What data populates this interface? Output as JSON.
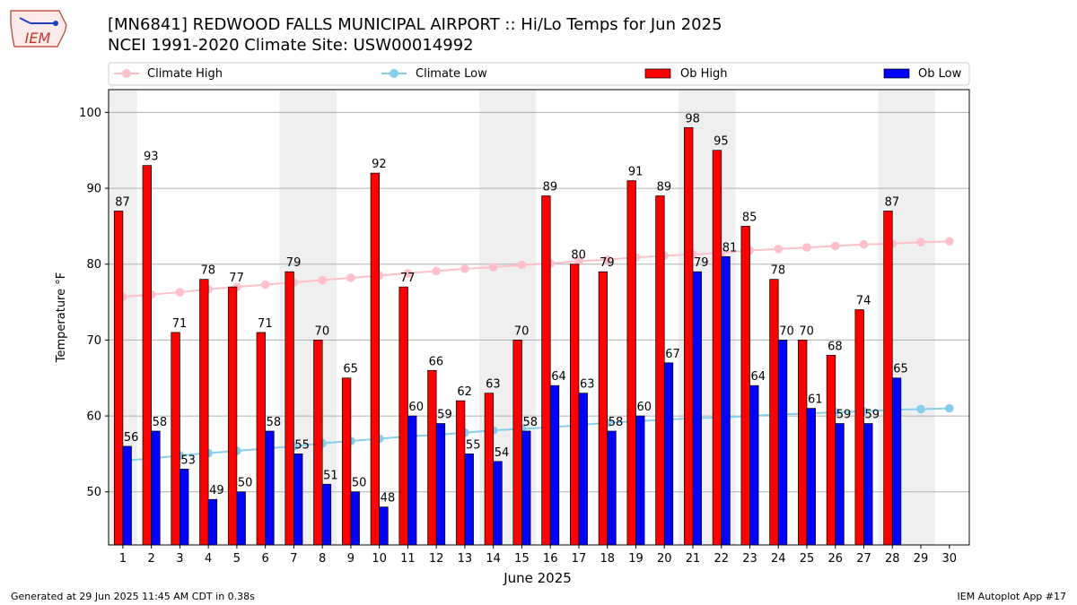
{
  "header": {
    "title_line1": "[MN6841] REDWOOD FALLS MUNICIPAL AIRPORT :: Hi/Lo Temps for Jun 2025",
    "title_line2": "NCEI 1991-2020 Climate Site: USW00014992",
    "logo_text": "IEM"
  },
  "footer": {
    "generated": "Generated at 29 Jun 2025 11:45 AM CDT in 0.38s",
    "app": "IEM Autoplot App #17"
  },
  "colors": {
    "ob_high": "#ff0000",
    "ob_low": "#0000ff",
    "climate_high": "#ffc0cb",
    "climate_low": "#87ceeb",
    "weekend_shade": "#efefef",
    "grid": "#b0b0b0"
  },
  "chart_data": {
    "type": "bar",
    "title": "[MN6841] REDWOOD FALLS MUNICIPAL AIRPORT :: Hi/Lo Temps for Jun 2025",
    "subtitle": "NCEI 1991-2020 Climate Site: USW00014992",
    "xlabel": "June 2025",
    "ylabel": "Temperature °F",
    "ylim": [
      43,
      103
    ],
    "yticks": [
      50,
      60,
      70,
      80,
      90,
      100
    ],
    "grid": "y",
    "legend_position": "top",
    "categories": [
      "1",
      "2",
      "3",
      "4",
      "5",
      "6",
      "7",
      "8",
      "9",
      "10",
      "11",
      "12",
      "13",
      "14",
      "15",
      "16",
      "17",
      "18",
      "19",
      "20",
      "21",
      "22",
      "23",
      "24",
      "25",
      "26",
      "27",
      "28",
      "29",
      "30"
    ],
    "shaded_days": [
      1,
      7,
      8,
      14,
      15,
      21,
      22,
      28,
      29
    ],
    "series": [
      {
        "name": "Ob High",
        "kind": "bar",
        "color": "#ff0000",
        "values": [
          87,
          93,
          71,
          78,
          77,
          71,
          79,
          70,
          65,
          92,
          77,
          66,
          62,
          63,
          70,
          89,
          80,
          79,
          91,
          89,
          98,
          95,
          85,
          78,
          70,
          68,
          74,
          87,
          null,
          null
        ]
      },
      {
        "name": "Ob Low",
        "kind": "bar",
        "color": "#0000ff",
        "values": [
          56,
          58,
          53,
          49,
          50,
          58,
          55,
          51,
          50,
          48,
          60,
          59,
          55,
          54,
          58,
          64,
          63,
          58,
          60,
          67,
          79,
          81,
          64,
          70,
          61,
          59,
          59,
          65,
          null,
          null
        ]
      },
      {
        "name": "Climate High",
        "kind": "line",
        "color": "#ffc0cb",
        "values": [
          75.7,
          76.0,
          76.3,
          76.7,
          77.0,
          77.3,
          77.6,
          77.9,
          78.2,
          78.5,
          78.8,
          79.1,
          79.4,
          79.6,
          79.9,
          80.1,
          80.4,
          80.6,
          80.9,
          81.1,
          81.3,
          81.5,
          81.8,
          82.0,
          82.2,
          82.4,
          82.6,
          82.7,
          82.9,
          83.0
        ]
      },
      {
        "name": "Climate Low",
        "kind": "line",
        "color": "#87ceeb",
        "values": [
          54.1,
          54.4,
          54.8,
          55.1,
          55.4,
          55.7,
          56.0,
          56.4,
          56.7,
          57.0,
          57.3,
          57.5,
          57.8,
          58.1,
          58.3,
          58.5,
          58.8,
          59.1,
          59.3,
          59.5,
          59.7,
          59.8,
          60.0,
          60.2,
          60.3,
          60.5,
          60.6,
          60.8,
          60.9,
          61.0
        ]
      }
    ]
  }
}
